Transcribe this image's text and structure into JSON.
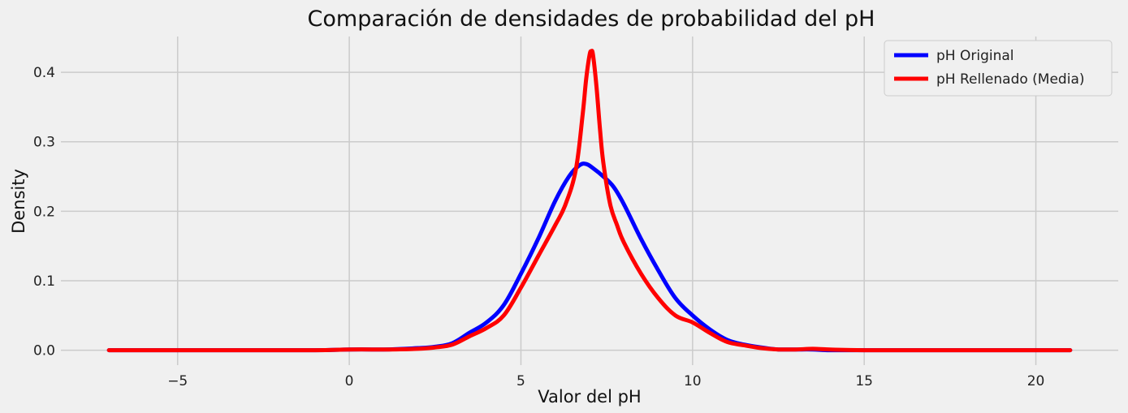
{
  "chart_data": {
    "type": "line",
    "title": "Comparación de densidades de probabilidad del pH",
    "xlabel": "Valor del pH",
    "ylabel": "Density",
    "xlim": [
      -8.4,
      22.4
    ],
    "ylim": [
      -0.0215,
      0.4515
    ],
    "xticks": [
      -5,
      0,
      5,
      10,
      15,
      20
    ],
    "xtick_labels": [
      "−5",
      "0",
      "5",
      "10",
      "15",
      "20"
    ],
    "yticks": [
      0.0,
      0.1,
      0.2,
      0.3,
      0.4
    ],
    "ytick_labels": [
      "0.0",
      "0.1",
      "0.2",
      "0.3",
      "0.4"
    ],
    "grid": true,
    "legend_position": "top-right",
    "series": [
      {
        "name": "pH Original",
        "color": "#0000ff",
        "x": [
          -7,
          -5,
          -3,
          -1,
          0,
          1,
          2,
          2.5,
          3,
          3.5,
          4,
          4.5,
          5,
          5.5,
          6,
          6.4,
          6.7,
          6.9,
          7.1,
          7.4,
          7.7,
          8,
          8.5,
          9,
          9.5,
          10,
          10.5,
          11,
          11.5,
          12,
          12.5,
          13,
          13.5,
          14,
          15,
          17,
          19,
          21
        ],
        "values": [
          0.0,
          0.0,
          0.0,
          0.0,
          0.001,
          0.001,
          0.003,
          0.005,
          0.01,
          0.025,
          0.04,
          0.065,
          0.11,
          0.16,
          0.215,
          0.25,
          0.266,
          0.268,
          0.262,
          0.25,
          0.235,
          0.21,
          0.16,
          0.115,
          0.075,
          0.05,
          0.03,
          0.015,
          0.008,
          0.004,
          0.001,
          0.001,
          0.001,
          0.0,
          0.0,
          0.0,
          0.0,
          0.0
        ]
      },
      {
        "name": "pH Rellenado (Media)",
        "color": "#ff0000",
        "x": [
          -7,
          -5,
          -3,
          -1,
          0,
          1,
          2,
          2.5,
          3,
          3.5,
          4,
          4.5,
          5,
          5.5,
          6,
          6.3,
          6.6,
          6.8,
          6.9,
          7.0,
          7.05,
          7.1,
          7.2,
          7.3,
          7.4,
          7.6,
          7.8,
          8,
          8.5,
          9,
          9.5,
          10,
          10.5,
          11,
          11.5,
          12,
          12.5,
          13,
          13.5,
          14,
          15,
          17,
          19,
          21
        ],
        "values": [
          0.0,
          0.0,
          0.0,
          0.0,
          0.001,
          0.001,
          0.002,
          0.004,
          0.008,
          0.02,
          0.032,
          0.05,
          0.09,
          0.135,
          0.18,
          0.21,
          0.26,
          0.34,
          0.39,
          0.425,
          0.43,
          0.425,
          0.38,
          0.32,
          0.27,
          0.21,
          0.18,
          0.155,
          0.11,
          0.075,
          0.05,
          0.04,
          0.025,
          0.012,
          0.007,
          0.003,
          0.001,
          0.001,
          0.002,
          0.001,
          0.0,
          0.0,
          0.0,
          0.0
        ]
      }
    ]
  }
}
